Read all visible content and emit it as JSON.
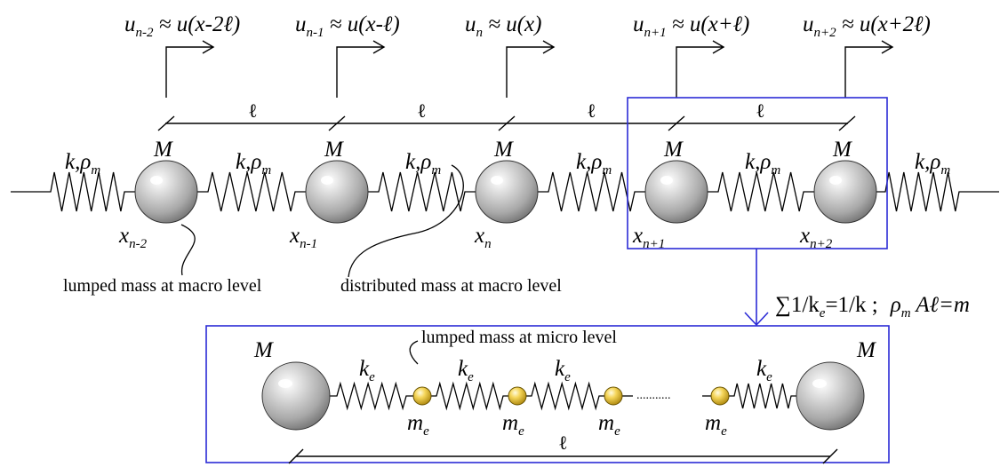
{
  "top_labels": [
    {
      "u": "u",
      "sub": "n-2",
      "rhs": " ≈ u(x-2ℓ)"
    },
    {
      "u": "u",
      "sub": "n-1",
      "rhs": " ≈ u(x-ℓ)"
    },
    {
      "u": "u",
      "sub": "n",
      "rhs": " ≈ u(x)"
    },
    {
      "u": "u",
      "sub": "n+1",
      "rhs": " ≈ u(x+ℓ)"
    },
    {
      "u": "u",
      "sub": "n+2",
      "rhs": " ≈ u(x+2ℓ)"
    }
  ],
  "ell": "ℓ",
  "mass_label": "M",
  "spring_label": {
    "k": "k,",
    "rho": "ρ",
    "rho_sub": "m"
  },
  "position_labels": [
    {
      "x": "x",
      "sub": "n-2"
    },
    {
      "x": "x",
      "sub": "n-1"
    },
    {
      "x": "x",
      "sub": "n"
    },
    {
      "x": "x",
      "sub": "n+1"
    },
    {
      "x": "x",
      "sub": "n+2"
    }
  ],
  "annotations": {
    "lumped_macro": "lumped mass at macro level",
    "distributed_macro": "distributed mass at macro level",
    "lumped_micro": "lumped mass at micro level"
  },
  "relation": {
    "sum": "∑1/k",
    "ke_sub": "e",
    "eq1": "=1/k ;",
    "rho": "ρ",
    "rho_sub": "m",
    "rest": " Aℓ=m"
  },
  "micro": {
    "spring_k": "k",
    "spring_sub": "e",
    "mass_m": "m",
    "mass_sub": "e",
    "dots": "..........."
  },
  "colors": {
    "frame": "#2b2bd6",
    "line": "#000000"
  }
}
